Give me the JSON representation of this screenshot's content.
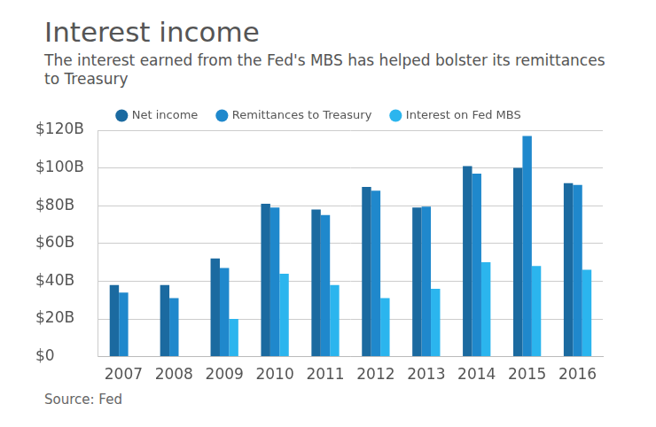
{
  "chart_data": {
    "type": "bar",
    "title": "Interest income",
    "subtitle": "The interest earned from the Fed's MBS has helped bolster its remittances to Treasury",
    "source": "Source: Fed",
    "categories": [
      "2007",
      "2008",
      "2009",
      "2010",
      "2011",
      "2012",
      "2013",
      "2014",
      "2015",
      "2016"
    ],
    "series": [
      {
        "name": "Net income",
        "color": "#1b6aa0",
        "values": [
          38,
          38,
          52,
          81,
          78,
          90,
          79,
          101,
          100,
          92
        ]
      },
      {
        "name": "Remittances to Treasury",
        "color": "#1f88cc",
        "values": [
          34,
          31,
          47,
          79,
          75,
          88,
          79.5,
          97,
          117,
          91
        ]
      },
      {
        "name": "Interest on Fed MBS",
        "color": "#2bb5ee",
        "values": [
          null,
          null,
          20,
          44,
          38,
          31,
          36,
          50,
          48,
          46
        ]
      }
    ],
    "ylim": [
      0,
      120
    ],
    "yticks": [
      {
        "value": 0,
        "label": "$0"
      },
      {
        "value": 20,
        "label": "$20B"
      },
      {
        "value": 40,
        "label": "$40B"
      },
      {
        "value": 60,
        "label": "$60B"
      },
      {
        "value": 80,
        "label": "$80B"
      },
      {
        "value": 100,
        "label": "$100B"
      },
      {
        "value": 120,
        "label": "$120B"
      }
    ],
    "grid": true,
    "legend": "top"
  }
}
